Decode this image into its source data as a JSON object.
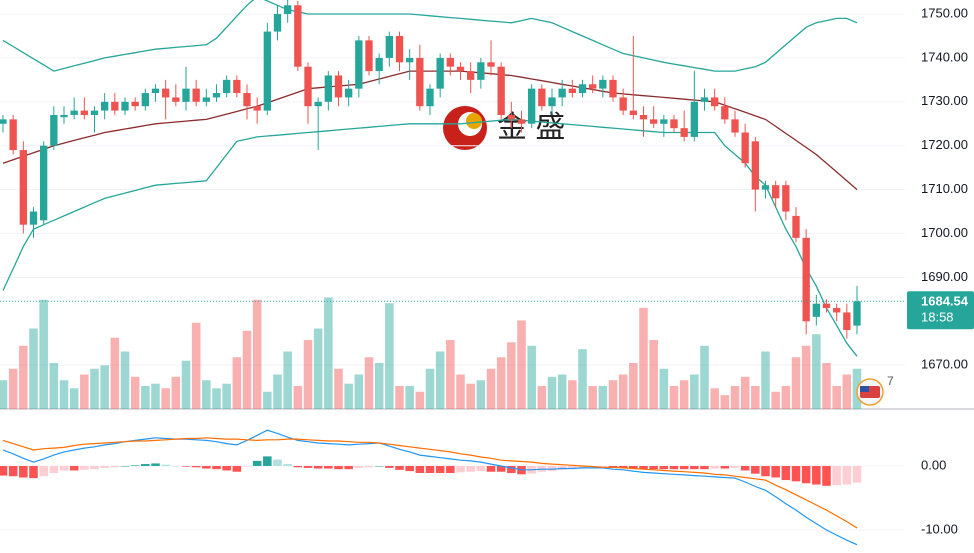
{
  "chart_data": {
    "type": "candlestick",
    "up_color": "#26a69a",
    "down_color": "#ef5350",
    "ylim": [
      1660,
      1753.2
    ],
    "yticks": [
      {
        "value": 1750,
        "label": "1750.00"
      },
      {
        "value": 1740,
        "label": "1740.00"
      },
      {
        "value": 1730,
        "label": "1730.00"
      },
      {
        "value": 1720,
        "label": "1720.00"
      },
      {
        "value": 1710,
        "label": "1710.00"
      },
      {
        "value": 1700,
        "label": "1700.00"
      },
      {
        "value": 1690,
        "label": "1690.00"
      },
      {
        "value": 1670,
        "label": "1670.00"
      }
    ],
    "grid": true,
    "last_price": 1684.54,
    "countdown": "18:58",
    "watermark": "金 盛",
    "event_badge": 7,
    "ohlc": [
      [
        1725,
        1727,
        1723,
        1726
      ],
      [
        1726,
        1727,
        1718,
        1719
      ],
      [
        1719,
        1721,
        1700,
        1702
      ],
      [
        1702,
        1706,
        1699,
        1705
      ],
      [
        1703,
        1721,
        1702,
        1720
      ],
      [
        1720,
        1729,
        1719,
        1727
      ],
      [
        1726.5,
        1729,
        1725,
        1727
      ],
      [
        1727,
        1731,
        1726,
        1728
      ],
      [
        1728,
        1731,
        1726,
        1727
      ],
      [
        1727,
        1729,
        1723,
        1728
      ],
      [
        1728,
        1732,
        1726,
        1730
      ],
      [
        1730,
        1732,
        1727,
        1728
      ],
      [
        1728,
        1731,
        1727,
        1730
      ],
      [
        1730,
        1731,
        1728,
        1729
      ],
      [
        1729,
        1733,
        1728,
        1732
      ],
      [
        1732,
        1734,
        1730,
        1733
      ],
      [
        1733,
        1735,
        1726,
        1731
      ],
      [
        1731,
        1734,
        1729,
        1730
      ],
      [
        1730,
        1738,
        1728,
        1733
      ],
      [
        1733,
        1735,
        1729,
        1730
      ],
      [
        1730,
        1733,
        1729,
        1731
      ],
      [
        1731,
        1734,
        1730,
        1732
      ],
      [
        1732,
        1736,
        1731,
        1735
      ],
      [
        1735,
        1736,
        1731,
        1732
      ],
      [
        1732,
        1734,
        1726,
        1729
      ],
      [
        1729,
        1731,
        1725,
        1728
      ],
      [
        1728,
        1748,
        1727,
        1746
      ],
      [
        1746,
        1752,
        1744,
        1750
      ],
      [
        1750,
        1754,
        1748,
        1752
      ],
      [
        1752,
        1753,
        1737,
        1738
      ],
      [
        1738,
        1739,
        1725,
        1729
      ],
      [
        1729,
        1731,
        1719,
        1730
      ],
      [
        1730,
        1737,
        1728,
        1736
      ],
      [
        1736,
        1737,
        1729,
        1731
      ],
      [
        1731,
        1735,
        1729,
        1733
      ],
      [
        1733,
        1745,
        1731,
        1744
      ],
      [
        1744,
        1745,
        1736,
        1737
      ],
      [
        1737,
        1741,
        1734,
        1740
      ],
      [
        1740,
        1746,
        1738,
        1745
      ],
      [
        1745,
        1746,
        1737,
        1739
      ],
      [
        1739,
        1742,
        1735,
        1740
      ],
      [
        1740,
        1743,
        1728,
        1729
      ],
      [
        1729,
        1734,
        1727,
        1733
      ],
      [
        1733,
        1741,
        1731,
        1740
      ],
      [
        1740,
        1741,
        1736,
        1738
      ],
      [
        1738,
        1739,
        1735,
        1737
      ],
      [
        1737,
        1739,
        1732,
        1735
      ],
      [
        1735,
        1740,
        1733,
        1739
      ],
      [
        1739,
        1744,
        1736,
        1738
      ],
      [
        1738,
        1739,
        1726,
        1727
      ],
      [
        1727,
        1730,
        1724,
        1726
      ],
      [
        1726,
        1728,
        1723,
        1725
      ],
      [
        1725,
        1734,
        1724,
        1733
      ],
      [
        1733,
        1734,
        1728,
        1729
      ],
      [
        1729,
        1733,
        1727,
        1731
      ],
      [
        1731,
        1735,
        1729,
        1733
      ],
      [
        1733,
        1735,
        1731,
        1732
      ],
      [
        1732,
        1735,
        1731,
        1734
      ],
      [
        1734,
        1736,
        1732,
        1733
      ],
      [
        1733,
        1736,
        1731,
        1735
      ],
      [
        1735,
        1736,
        1730,
        1731
      ],
      [
        1731,
        1733,
        1727,
        1728
      ],
      [
        1728,
        1745,
        1726,
        1727
      ],
      [
        1727,
        1729,
        1722,
        1726
      ],
      [
        1726,
        1729,
        1724,
        1725
      ],
      [
        1725,
        1727,
        1722,
        1726
      ],
      [
        1726,
        1727,
        1723,
        1724
      ],
      [
        1724,
        1728,
        1721,
        1722
      ],
      [
        1722,
        1737,
        1721,
        1730
      ],
      [
        1730,
        1733,
        1728,
        1731
      ],
      [
        1731,
        1733,
        1728,
        1729
      ],
      [
        1729,
        1731,
        1725,
        1726
      ],
      [
        1726,
        1728,
        1722,
        1723
      ],
      [
        1723,
        1725,
        1715,
        1716
      ],
      [
        1721,
        1722,
        1705,
        1710
      ],
      [
        1710,
        1712,
        1708,
        1711
      ],
      [
        1711,
        1712,
        1706,
        1708
      ],
      [
        1711,
        1712,
        1703,
        1705
      ],
      [
        1704,
        1706,
        1698,
        1699
      ],
      [
        1699,
        1701,
        1677,
        1680
      ],
      [
        1681,
        1686,
        1679,
        1684
      ],
      [
        1684,
        1685,
        1682,
        1683
      ],
      [
        1683,
        1684,
        1680,
        1682
      ],
      [
        1682,
        1684,
        1676,
        1678
      ],
      [
        1679,
        1688,
        1677,
        1684.54
      ]
    ],
    "bb_upper": {
      "color": "#26a69a",
      "values": [
        1744,
        1742.6,
        1741.2,
        1739.8,
        1738.4,
        1737,
        1737.6,
        1738.2,
        1738.8,
        1739.4,
        1740,
        1740.4,
        1740.8,
        1741.2,
        1741.6,
        1742,
        1742.2,
        1742.4,
        1742.6,
        1742.8,
        1743,
        1744.5,
        1747,
        1749.5,
        1752,
        1754,
        1753,
        1752,
        1751,
        1750.5,
        1750,
        1750,
        1750,
        1750,
        1750,
        1750,
        1750,
        1750,
        1750,
        1750,
        1750,
        1749.8,
        1749.6,
        1749.4,
        1749.2,
        1749,
        1748.8,
        1748.6,
        1748.4,
        1748.2,
        1748,
        1748.5,
        1749,
        1748.5,
        1748,
        1747,
        1746,
        1745,
        1744,
        1743,
        1742,
        1741,
        1740.5,
        1740,
        1739.5,
        1739,
        1738.6,
        1738.2,
        1737.8,
        1737.4,
        1737,
        1737,
        1737,
        1737.5,
        1738,
        1739,
        1741,
        1743,
        1745,
        1747,
        1748,
        1748.5,
        1749,
        1749,
        1748
      ]
    },
    "bb_middle": {
      "color": "#8b2c2c",
      "values": [
        1716,
        1716.8,
        1717.6,
        1718.4,
        1719.2,
        1720,
        1720.6,
        1721.2,
        1721.8,
        1722.4,
        1723,
        1723.4,
        1723.8,
        1724.2,
        1724.6,
        1725,
        1725.2,
        1725.4,
        1725.6,
        1725.8,
        1726,
        1726.6,
        1727.2,
        1727.8,
        1728.4,
        1729,
        1729.8,
        1730.6,
        1731.4,
        1732.2,
        1733,
        1733.2,
        1733.4,
        1733.6,
        1733.8,
        1734,
        1734.6,
        1735.2,
        1735.8,
        1736.4,
        1737,
        1737,
        1737,
        1737,
        1737,
        1737,
        1736.8,
        1736.6,
        1736.4,
        1736.2,
        1736,
        1735.6,
        1735.2,
        1734.8,
        1734.4,
        1734,
        1733.6,
        1733.2,
        1732.8,
        1732.4,
        1732,
        1731.8,
        1731.6,
        1731.4,
        1731.2,
        1731,
        1730.8,
        1730.6,
        1730.4,
        1730.2,
        1730,
        1729.2,
        1728.4,
        1727.6,
        1726.8,
        1726,
        1724.4,
        1722.8,
        1721.2,
        1719.6,
        1718,
        1716,
        1714,
        1712,
        1710
      ]
    },
    "bb_lower": {
      "color": "#26a69a",
      "values": [
        1687,
        1692,
        1697,
        1701,
        1702,
        1703,
        1704,
        1705,
        1706,
        1707,
        1708,
        1708.6,
        1709.2,
        1709.8,
        1710.4,
        1711,
        1711.2,
        1711.4,
        1711.6,
        1711.8,
        1712,
        1715,
        1718,
        1721,
        1721.5,
        1722,
        1722.2,
        1722.4,
        1722.6,
        1722.8,
        1723,
        1723.2,
        1723.4,
        1723.6,
        1723.8,
        1724,
        1724.2,
        1724.4,
        1724.6,
        1724.8,
        1725,
        1725,
        1725,
        1725,
        1725,
        1725,
        1725.2,
        1725.4,
        1725.6,
        1725.8,
        1726,
        1725.8,
        1725.6,
        1725.4,
        1725.2,
        1725,
        1724.8,
        1724.6,
        1724.4,
        1724.2,
        1724,
        1723.8,
        1723.6,
        1723.4,
        1723.2,
        1723,
        1723,
        1723,
        1723,
        1723,
        1723,
        1720,
        1718,
        1716,
        1713,
        1711,
        1706,
        1701,
        1697,
        1692,
        1688,
        1683,
        1679,
        1675,
        1672
      ]
    },
    "volume_ylim": [
      0,
      100
    ],
    "volume": [
      25,
      35,
      55,
      70,
      95,
      40,
      25,
      18,
      30,
      35,
      38,
      62,
      50,
      28,
      20,
      22,
      18,
      28,
      42,
      75,
      25,
      18,
      22,
      45,
      68,
      95,
      15,
      30,
      50,
      20,
      60,
      70,
      97,
      35,
      22,
      30,
      45,
      40,
      92,
      20,
      20,
      15,
      35,
      50,
      60,
      30,
      22,
      25,
      35,
      45,
      58,
      77,
      55,
      20,
      28,
      30,
      25,
      52,
      20,
      20,
      25,
      30,
      40,
      88,
      60,
      35,
      20,
      25,
      30,
      55,
      18,
      12,
      20,
      28,
      20,
      50,
      15,
      20,
      45,
      55,
      65,
      40,
      20,
      30,
      35
    ],
    "macd_ylim": [
      -13.6,
      8.75
    ],
    "macd_yticks": [
      {
        "value": 0,
        "label": "0.00"
      },
      {
        "value": -10,
        "label": "-10.00"
      }
    ],
    "macd_dif": {
      "color": "#2196f3",
      "values": [
        2.5,
        1.9,
        1.2,
        0.6,
        1.1,
        1.7,
        2.2,
        2.5,
        2.8,
        3.0,
        3.3,
        3.5,
        3.8,
        4.0,
        4.2,
        4.4,
        4.3,
        4.2,
        4.2,
        4.1,
        4.0,
        3.8,
        3.5,
        3.3,
        4.0,
        4.8,
        5.6,
        5.1,
        4.5,
        4.0,
        3.8,
        3.6,
        3.5,
        3.4,
        3.3,
        3.4,
        3.5,
        3.6,
        3.1,
        2.6,
        2.2,
        1.7,
        1.5,
        1.3,
        1.1,
        0.9,
        0.8,
        0.6,
        0.3,
        0,
        -0.3,
        -0.6,
        -0.6,
        -0.5,
        -0.5,
        -0.4,
        -0.4,
        -0.3,
        -0.3,
        -0.3,
        -0.5,
        -0.6,
        -0.8,
        -1.0,
        -1.1,
        -1.2,
        -1.3,
        -1.4,
        -1.5,
        -1.6,
        -1.7,
        -1.8,
        -1.9,
        -2.5,
        -3.2,
        -3.8,
        -4.8,
        -5.9,
        -6.9,
        -8.0,
        -9.0,
        -10,
        -10.8,
        -11.6,
        -12.3
      ]
    },
    "macd_dea": {
      "color": "#ff6d00",
      "values": [
        4.0,
        3.5,
        3.0,
        2.5,
        2.7,
        2.8,
        2.9,
        3.2,
        3.4,
        3.5,
        3.6,
        3.7,
        3.8,
        3.9,
        3.9,
        4.0,
        4.1,
        4.2,
        4.3,
        4.3,
        4.4,
        4.3,
        4.2,
        4.2,
        4.1,
        4.0,
        4.1,
        4.1,
        4.2,
        4.2,
        4.1,
        4.0,
        3.9,
        3.9,
        3.8,
        3.7,
        3.7,
        3.6,
        3.4,
        3.2,
        3.0,
        2.8,
        2.6,
        2.4,
        2.2,
        1.9,
        1.7,
        1.4,
        1.2,
        0.9,
        0.8,
        0.7,
        0.6,
        0.4,
        0.3,
        0.2,
        0.1,
        0.0,
        -0.1,
        -0.2,
        -0.2,
        -0.3,
        -0.4,
        -0.5,
        -0.6,
        -0.7,
        -0.8,
        -0.9,
        -1.0,
        -1.1,
        -1.3,
        -1.4,
        -1.6,
        -1.8,
        -2.0,
        -2.2,
        -3.0,
        -3.7,
        -4.5,
        -5.3,
        -6.1,
        -6.9,
        -7.8,
        -8.7,
        -9.7
      ]
    },
    "macd_hist": [
      -1.5,
      -1.6,
      -1.8,
      -1.9,
      -1.6,
      -1.1,
      -0.7,
      -0.7,
      -0.6,
      -0.5,
      -0.3,
      -0.2,
      0,
      0.1,
      0.3,
      0.4,
      0.2,
      0,
      -0.1,
      -0.2,
      -0.4,
      -0.5,
      -0.7,
      -0.9,
      -0.1,
      0.8,
      1.5,
      1.0,
      0.3,
      -0.2,
      -0.3,
      -0.4,
      -0.4,
      -0.5,
      -0.5,
      -0.3,
      -0.2,
      0,
      -0.3,
      -0.6,
      -0.8,
      -1.1,
      -1.1,
      -1.1,
      -1.1,
      -1.0,
      -0.9,
      -0.8,
      -0.9,
      -0.9,
      -1.1,
      -1.3,
      -1.2,
      -0.9,
      -0.8,
      -0.6,
      -0.5,
      -0.3,
      -0.2,
      -0.1,
      -0.3,
      -0.3,
      -0.4,
      -0.5,
      -0.5,
      -0.5,
      -0.5,
      -0.5,
      -0.5,
      -0.5,
      -0.4,
      -0.4,
      -0.3,
      -0.7,
      -1.2,
      -1.6,
      -1.8,
      -2.2,
      -2.4,
      -2.7,
      -2.9,
      -3.1,
      -3.0,
      -2.9,
      -2.6
    ]
  }
}
